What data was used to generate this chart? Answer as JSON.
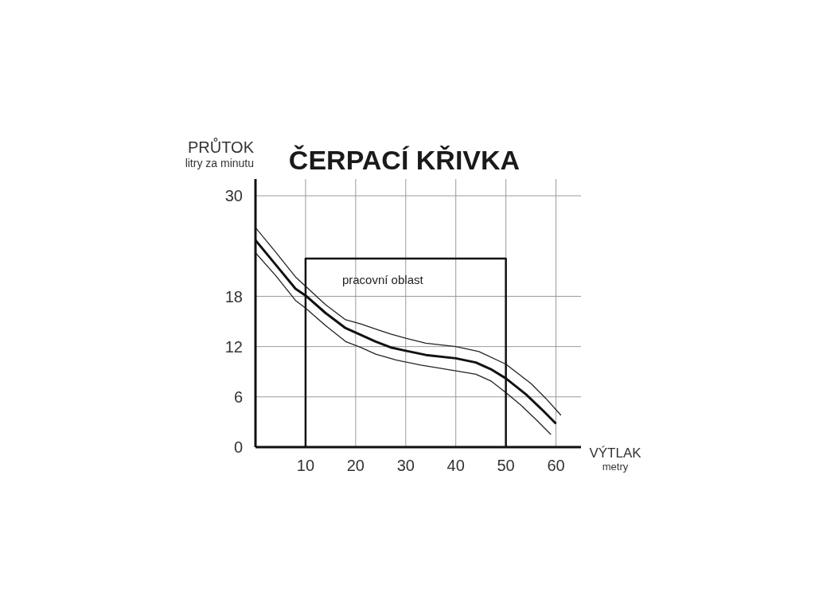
{
  "chart_data": {
    "type": "line",
    "title": "ČERPACÍ KŘIVKA",
    "xlabel": "VÝTLAK\nmetry",
    "ylabel": "PRŮTOK\nlitry za minutu",
    "xlim": [
      0,
      65
    ],
    "ylim": [
      0,
      32
    ],
    "xticks": [
      10,
      20,
      30,
      40,
      50,
      60
    ],
    "yticks": [
      0,
      6,
      12,
      18,
      30
    ],
    "grid": true,
    "series": [
      {
        "color": "#111111",
        "x": [
          0,
          4,
          8,
          10,
          14,
          18,
          21,
          24,
          27,
          30,
          34,
          40,
          44,
          47,
          50,
          54,
          57,
          60
        ],
        "values": [
          24.7,
          21.8,
          18.9,
          18.1,
          16.0,
          14.2,
          13.4,
          12.6,
          11.9,
          11.5,
          11.0,
          10.6,
          10.1,
          9.3,
          8.2,
          6.3,
          4.6,
          2.8
        ]
      },
      {
        "color": "#222222",
        "x": [
          0,
          4,
          8,
          10,
          14,
          18,
          21,
          24,
          27,
          30,
          34,
          40,
          44.6,
          50,
          55,
          58,
          61
        ],
        "values": [
          26.2,
          23.3,
          20.3,
          19.2,
          17.0,
          15.2,
          14.7,
          14.1,
          13.5,
          13.0,
          12.4,
          12.0,
          11.4,
          9.9,
          7.6,
          5.8,
          3.8
        ]
      },
      {
        "color": "#222222",
        "x": [
          0,
          4,
          8,
          10,
          14,
          18,
          21,
          24,
          28,
          33,
          40,
          44,
          47,
          50,
          53,
          56,
          59
        ],
        "values": [
          23.2,
          20.5,
          17.5,
          16.6,
          14.5,
          12.6,
          11.9,
          11.1,
          10.4,
          9.8,
          9.1,
          8.7,
          7.9,
          6.5,
          5.0,
          3.3,
          1.5
        ]
      },
      {
        "name": "pracovní oblast",
        "color": "#111111",
        "x": [
          10,
          10,
          50,
          50
        ],
        "values": [
          0,
          22.5,
          22.5,
          0
        ]
      }
    ]
  }
}
